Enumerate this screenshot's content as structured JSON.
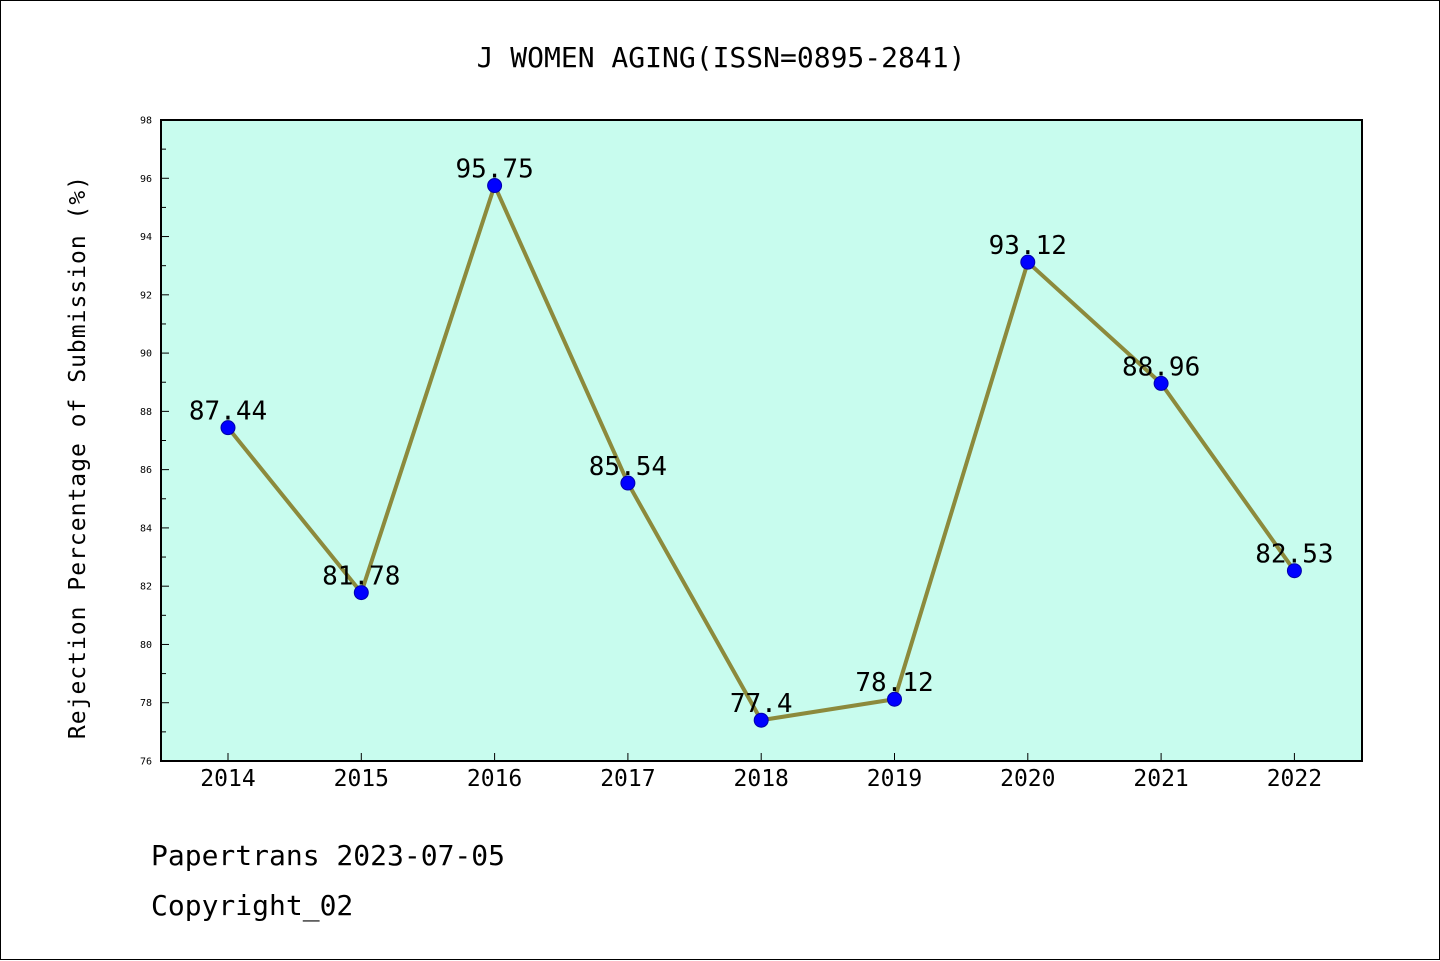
{
  "chart_data": {
    "type": "line",
    "title": "J WOMEN AGING(ISSN=0895-2841)",
    "xlabel": "",
    "ylabel": "Rejection Percentage of Submission (%)",
    "categories": [
      "2014",
      "2015",
      "2016",
      "2017",
      "2018",
      "2019",
      "2020",
      "2021",
      "2022"
    ],
    "series": [
      {
        "values": [
          87.44,
          81.78,
          95.75,
          85.54,
          77.4,
          78.12,
          93.12,
          88.96,
          82.53
        ],
        "labels": [
          "87.44",
          "81.78",
          "95.75",
          "85.54",
          "77.4",
          "78.12",
          "93.12",
          "88.96",
          "82.53"
        ]
      }
    ],
    "ylim": [
      76,
      98
    ],
    "y_ticks": [
      "76",
      "78",
      "80",
      "82",
      "84",
      "86",
      "88",
      "90",
      "92",
      "94",
      "96",
      "98"
    ],
    "grid": false,
    "colors": {
      "plot_background": "#c8fcee",
      "line": "#8c8a3c",
      "marker": "#0000ff"
    }
  },
  "footer": {
    "line1": "Papertrans 2023-07-05",
    "line2": "Copyright_02"
  }
}
